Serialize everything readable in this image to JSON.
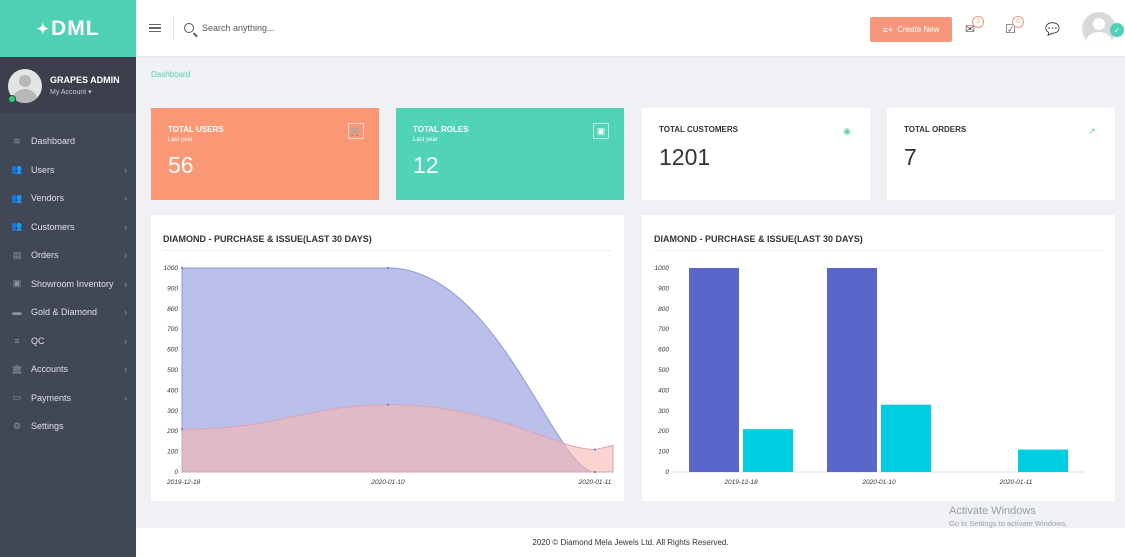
{
  "brand": {
    "logo_text": "DML",
    "logo_mark": "✦"
  },
  "profile": {
    "name": "GRAPES ADMIN",
    "account_label": "My Account ▾"
  },
  "sidebar": {
    "items": [
      {
        "label": "Dashboard",
        "icon": "dashboard-icon",
        "glyph": "≋",
        "chevron": ""
      },
      {
        "label": "Users",
        "icon": "users-icon",
        "glyph": "👥",
        "chevron": "›"
      },
      {
        "label": "Vendors",
        "icon": "vendors-icon",
        "glyph": "👥",
        "chevron": "›"
      },
      {
        "label": "Customers",
        "icon": "customers-icon",
        "glyph": "👥",
        "chevron": "›"
      },
      {
        "label": "Orders",
        "icon": "orders-icon",
        "glyph": "▤",
        "chevron": "›"
      },
      {
        "label": "Showroom Inventory",
        "icon": "inventory-icon",
        "glyph": "▣",
        "chevron": "›"
      },
      {
        "label": "Gold & Diamond",
        "icon": "gold-diamond-icon",
        "glyph": "▬",
        "chevron": "›"
      },
      {
        "label": "QC",
        "icon": "qc-icon",
        "glyph": "≡",
        "chevron": "›"
      },
      {
        "label": "Accounts",
        "icon": "accounts-icon",
        "glyph": "🏛",
        "chevron": "›"
      },
      {
        "label": "Payments",
        "icon": "payments-icon",
        "glyph": "▭",
        "chevron": "›"
      },
      {
        "label": "Settings",
        "icon": "settings-icon",
        "glyph": "⚙",
        "chevron": ""
      }
    ]
  },
  "header": {
    "search_placeholder": "Search anything...",
    "create_label": "Create New",
    "mail_badge": "3",
    "tasks_badge": "0"
  },
  "breadcrumb": "Dashboard",
  "stats": [
    {
      "title": "TOTAL USERS",
      "sub": "Last year",
      "value": "56",
      "icon": "cart-icon",
      "glyph": "🛒"
    },
    {
      "title": "TOTAL ROLES",
      "sub": "Last year",
      "value": "12",
      "icon": "calendar-icon",
      "glyph": "▣"
    },
    {
      "title": "TOTAL CUSTOMERS",
      "sub": "",
      "value": "1201",
      "icon": "globe-icon",
      "glyph": "◉"
    },
    {
      "title": "TOTAL ORDERS",
      "sub": "",
      "value": "7",
      "icon": "trend-icon",
      "glyph": "↗"
    }
  ],
  "colors": {
    "purchase": "#5a66c9",
    "issue": "#00cde0",
    "area_purchase": "#b7bdea",
    "area_issue": "#f7b7b0"
  },
  "chart_data": [
    {
      "type": "area",
      "title": "DIAMOND - PURCHASE & ISSUE(LAST 30 DAYS)",
      "categories": [
        "2019-12-18",
        "2020-01-10",
        "2020-01-11"
      ],
      "series": [
        {
          "values": [
            1000,
            1000,
            0
          ]
        },
        {
          "values": [
            210,
            330,
            110
          ]
        }
      ],
      "ylim": [
        0,
        1000
      ],
      "yticks": [
        0,
        100,
        200,
        300,
        400,
        500,
        600,
        700,
        800,
        900,
        1000
      ],
      "grid": false
    },
    {
      "type": "bar",
      "title": "DIAMOND - PURCHASE & ISSUE(LAST 30 DAYS)",
      "categories": [
        "2019-12-18",
        "2020-01-10",
        "2020-01-11"
      ],
      "series": [
        {
          "values": [
            1000,
            1000,
            0
          ]
        },
        {
          "values": [
            210,
            330,
            110
          ]
        }
      ],
      "ylim": [
        0,
        1000
      ],
      "yticks": [
        0,
        100,
        200,
        300,
        400,
        500,
        600,
        700,
        800,
        900,
        1000
      ],
      "grid": false
    }
  ],
  "footer": "2020 © Diamond Mela Jewels Ltd. All Rights Reserved.",
  "watermark": {
    "line1": "Activate Windows",
    "line2": "Go to Settings to activate Windows."
  }
}
